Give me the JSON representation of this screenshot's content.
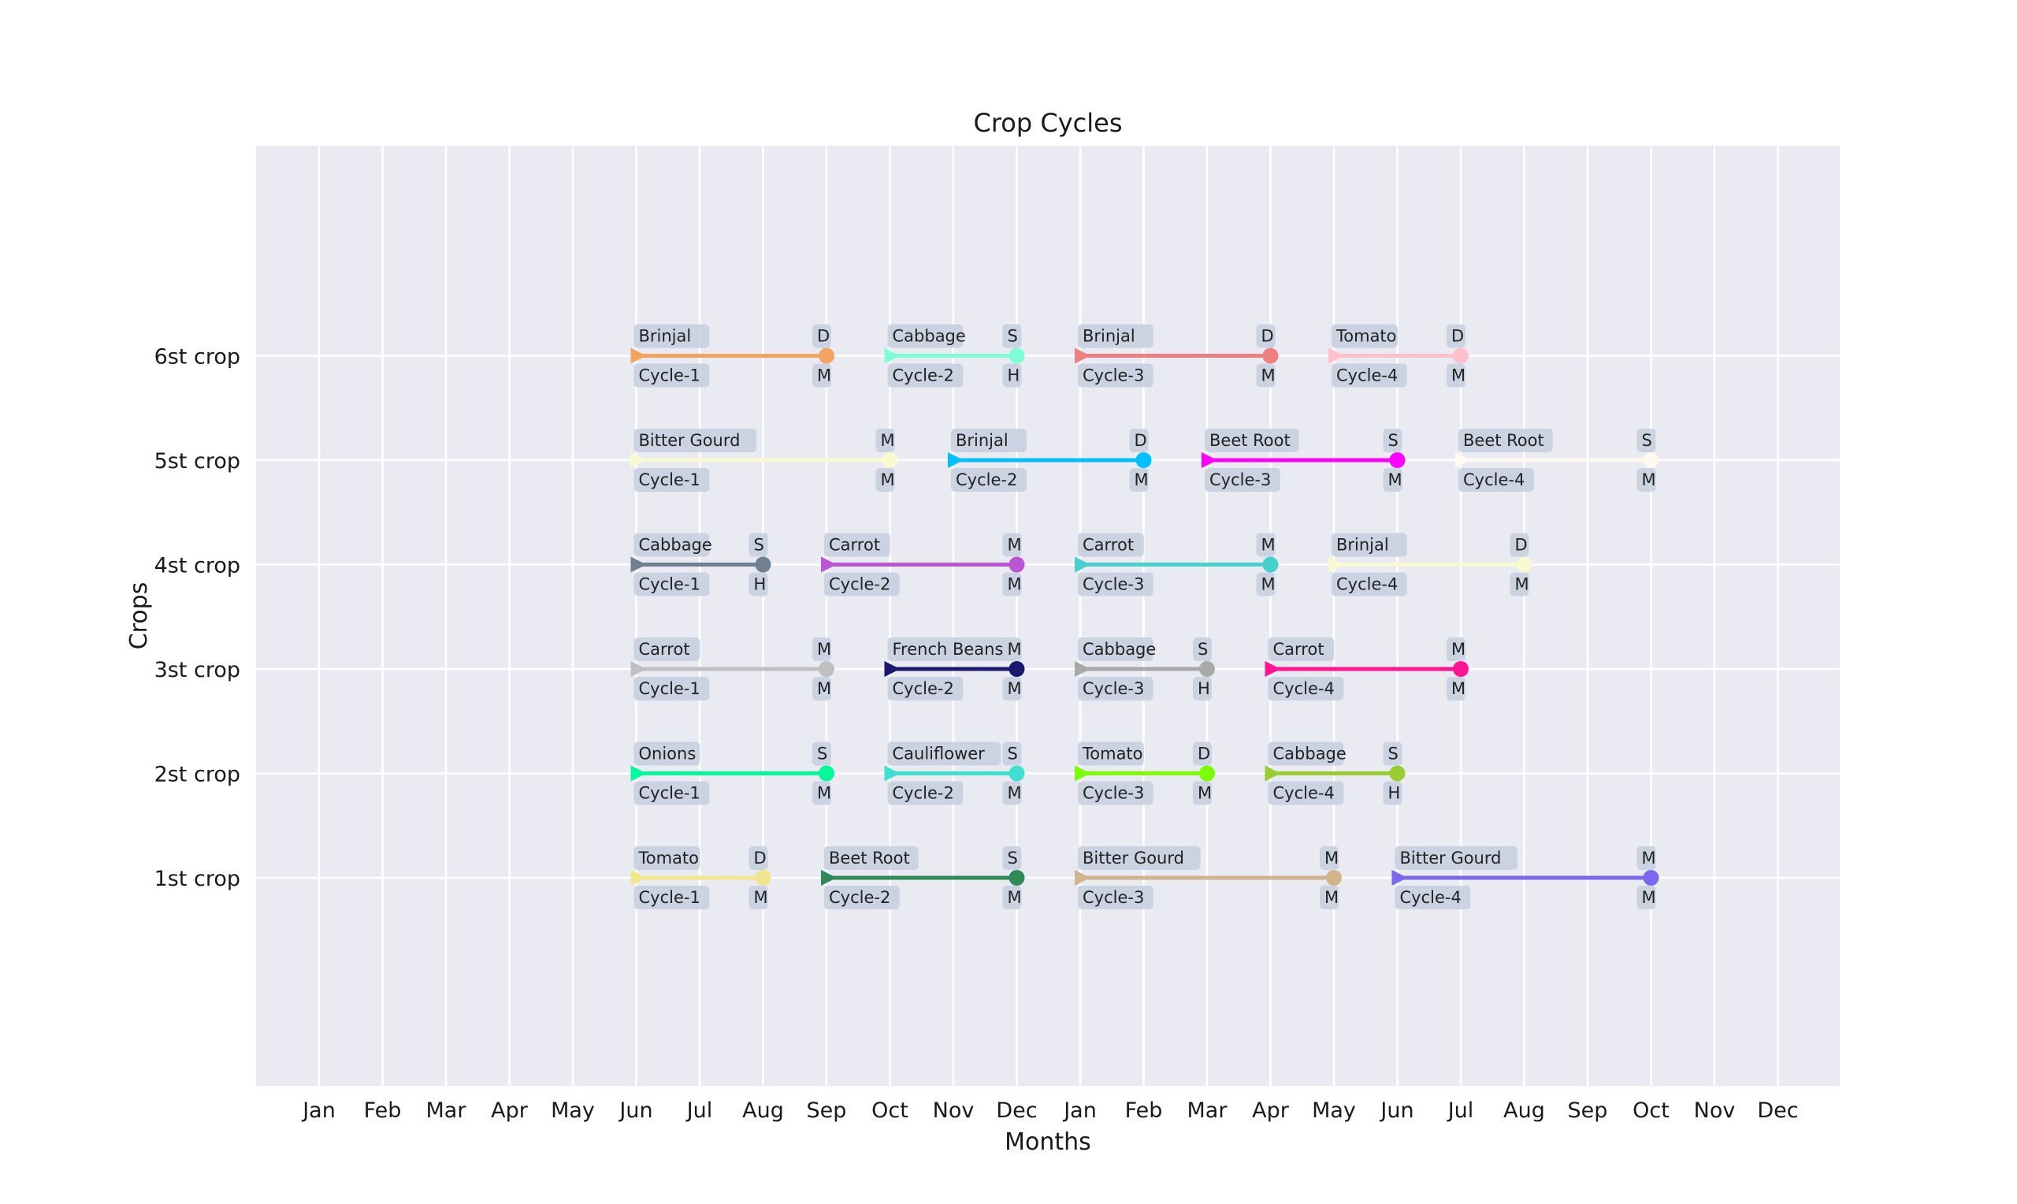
{
  "chart_data": {
    "type": "timeline",
    "title": "Crop Cycles",
    "xlabel": "Months",
    "ylabel": "Crops",
    "x_ticks": [
      "Jan",
      "Feb",
      "Mar",
      "Apr",
      "May",
      "Jun",
      "Jul",
      "Aug",
      "Sep",
      "Oct",
      "Nov",
      "Dec",
      "Jan",
      "Feb",
      "Mar",
      "Apr",
      "May",
      "Jun",
      "Jul",
      "Aug",
      "Sep",
      "Oct",
      "Nov",
      "Dec"
    ],
    "y_ticks": [
      "1st crop",
      "2st crop",
      "3st crop",
      "4st crop",
      "5st crop",
      "6st crop"
    ],
    "xlim": [
      -0.5,
      24.5
    ],
    "ylim": [
      -1,
      8
    ],
    "grid": true,
    "rows": [
      {
        "crop": "1st crop",
        "cycles": [
          {
            "crop_name": "Tomato",
            "cycle": "Cycle-1",
            "start": "Jun",
            "end": "Aug",
            "start_index": 5,
            "end_index": 7,
            "end_label_top": "D",
            "end_label_bottom": "M",
            "color": "#f0e68c"
          },
          {
            "crop_name": "Beet Root",
            "cycle": "Cycle-2",
            "start": "Sep",
            "end": "Dec",
            "start_index": 8,
            "end_index": 11,
            "end_label_top": "S",
            "end_label_bottom": "M",
            "color": "#2e8b57"
          },
          {
            "crop_name": "Bitter Gourd",
            "cycle": "Cycle-3",
            "start": "Jan",
            "end": "May",
            "start_index": 12,
            "end_index": 16,
            "end_label_top": "M",
            "end_label_bottom": "M",
            "color": "#d2b48c"
          },
          {
            "crop_name": "Bitter Gourd",
            "cycle": "Cycle-4",
            "start": "Jun",
            "end": "Oct",
            "start_index": 17,
            "end_index": 21,
            "end_label_top": "M",
            "end_label_bottom": "M",
            "color": "#7b68ee"
          }
        ]
      },
      {
        "crop": "2st crop",
        "cycles": [
          {
            "crop_name": "Onions",
            "cycle": "Cycle-1",
            "start": "Jun",
            "end": "Sep",
            "start_index": 5,
            "end_index": 8,
            "end_label_top": "S",
            "end_label_bottom": "M",
            "color": "#00fa9a"
          },
          {
            "crop_name": "Cauliflower",
            "cycle": "Cycle-2",
            "start": "Oct",
            "end": "Dec",
            "start_index": 9,
            "end_index": 11,
            "end_label_top": "S",
            "end_label_bottom": "M",
            "color": "#40e0d0"
          },
          {
            "crop_name": "Tomato",
            "cycle": "Cycle-3",
            "start": "Jan",
            "end": "Mar",
            "start_index": 12,
            "end_index": 14,
            "end_label_top": "D",
            "end_label_bottom": "M",
            "color": "#7cfc00"
          },
          {
            "crop_name": "Cabbage",
            "cycle": "Cycle-4",
            "start": "Apr",
            "end": "Jun",
            "start_index": 15,
            "end_index": 17,
            "end_label_top": "S",
            "end_label_bottom": "H",
            "color": "#9acd32"
          }
        ]
      },
      {
        "crop": "3st crop",
        "cycles": [
          {
            "crop_name": "Carrot",
            "cycle": "Cycle-1",
            "start": "Jun",
            "end": "Sep",
            "start_index": 5,
            "end_index": 8,
            "end_label_top": "M",
            "end_label_bottom": "M",
            "color": "#c0c0c0"
          },
          {
            "crop_name": "French Beans",
            "cycle": "Cycle-2",
            "start": "Oct",
            "end": "Dec",
            "start_index": 9,
            "end_index": 11,
            "end_label_top": "M",
            "end_label_bottom": "M",
            "color": "#191970"
          },
          {
            "crop_name": "Cabbage",
            "cycle": "Cycle-3",
            "start": "Jan",
            "end": "Mar",
            "start_index": 12,
            "end_index": 14,
            "end_label_top": "S",
            "end_label_bottom": "H",
            "color": "#a9a9a9"
          },
          {
            "crop_name": "Carrot",
            "cycle": "Cycle-4",
            "start": "Apr",
            "end": "Jul",
            "start_index": 15,
            "end_index": 18,
            "end_label_top": "M",
            "end_label_bottom": "M",
            "color": "#ff1493"
          }
        ]
      },
      {
        "crop": "4st crop",
        "cycles": [
          {
            "crop_name": "Cabbage",
            "cycle": "Cycle-1",
            "start": "Jun",
            "end": "Aug",
            "start_index": 5,
            "end_index": 7,
            "end_label_top": "S",
            "end_label_bottom": "H",
            "color": "#708090"
          },
          {
            "crop_name": "Carrot",
            "cycle": "Cycle-2",
            "start": "Sep",
            "end": "Dec",
            "start_index": 8,
            "end_index": 11,
            "end_label_top": "M",
            "end_label_bottom": "M",
            "color": "#ba55d3"
          },
          {
            "crop_name": "Carrot",
            "cycle": "Cycle-3",
            "start": "Jan",
            "end": "Apr",
            "start_index": 12,
            "end_index": 15,
            "end_label_top": "M",
            "end_label_bottom": "M",
            "color": "#48d1cc"
          },
          {
            "crop_name": "Brinjal",
            "cycle": "Cycle-4",
            "start": "May",
            "end": "Aug",
            "start_index": 16,
            "end_index": 19,
            "end_label_top": "D",
            "end_label_bottom": "M",
            "color": "#fafad2"
          }
        ]
      },
      {
        "crop": "5st crop",
        "cycles": [
          {
            "crop_name": "Bitter Gourd",
            "cycle": "Cycle-1",
            "start": "Jun",
            "end": "Oct",
            "start_index": 5,
            "end_index": 9,
            "end_label_top": "M",
            "end_label_bottom": "M",
            "color": "#fafad2"
          },
          {
            "crop_name": "Brinjal",
            "cycle": "Cycle-2",
            "start": "Nov",
            "end": "Feb",
            "start_index": 10,
            "end_index": 13,
            "end_label_top": "D",
            "end_label_bottom": "M",
            "color": "#00bfff"
          },
          {
            "crop_name": "Beet Root",
            "cycle": "Cycle-3",
            "start": "Mar",
            "end": "Jun",
            "start_index": 14,
            "end_index": 17,
            "end_label_top": "S",
            "end_label_bottom": "M",
            "color": "#ff00ff"
          },
          {
            "crop_name": "Beet Root",
            "cycle": "Cycle-4",
            "start": "Jul",
            "end": "Oct",
            "start_index": 18,
            "end_index": 21,
            "end_label_top": "S",
            "end_label_bottom": "M",
            "color": "#fffaf0"
          }
        ]
      },
      {
        "crop": "6st crop",
        "cycles": [
          {
            "crop_name": "Brinjal",
            "cycle": "Cycle-1",
            "start": "Jun",
            "end": "Sep",
            "start_index": 5,
            "end_index": 8,
            "end_label_top": "D",
            "end_label_bottom": "M",
            "color": "#f4a460"
          },
          {
            "crop_name": "Cabbage",
            "cycle": "Cycle-2",
            "start": "Oct",
            "end": "Dec",
            "start_index": 9,
            "end_index": 11,
            "end_label_top": "S",
            "end_label_bottom": "H",
            "color": "#7fffd4"
          },
          {
            "crop_name": "Brinjal",
            "cycle": "Cycle-3",
            "start": "Jan",
            "end": "Apr",
            "start_index": 12,
            "end_index": 15,
            "end_label_top": "D",
            "end_label_bottom": "M",
            "color": "#f08080"
          },
          {
            "crop_name": "Tomato",
            "cycle": "Cycle-4",
            "start": "May",
            "end": "Jul",
            "start_index": 16,
            "end_index": 18,
            "end_label_top": "D",
            "end_label_bottom": "M",
            "color": "#ffc0cb"
          }
        ]
      }
    ]
  },
  "colors": {
    "plot_background": "#eaeaf2",
    "grid": "#ffffff",
    "label_box": "#c9d2e0"
  }
}
